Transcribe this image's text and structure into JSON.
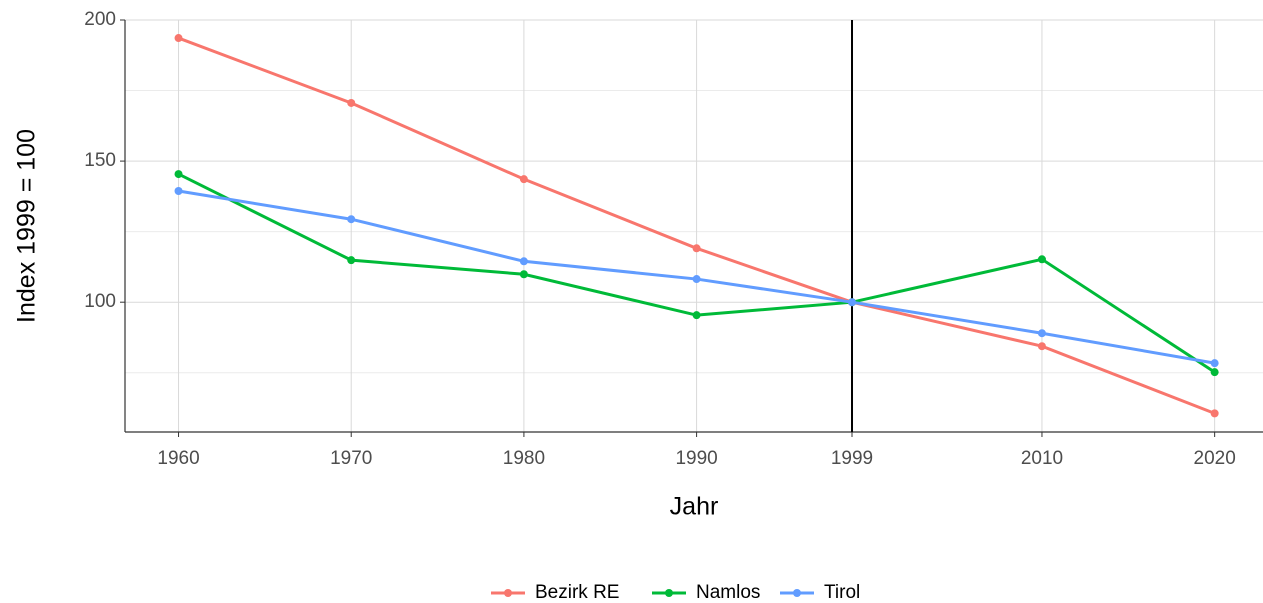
{
  "chart_data": {
    "type": "line",
    "x_label": "Jahr",
    "y_label": "Index 1999 = 100",
    "x": [
      1960,
      1970,
      1980,
      1990,
      1999,
      2010,
      2020
    ],
    "series": [
      {
        "name": "Bezirk RE",
        "color": "#F8766D",
        "values": [
          193.6,
          170.6,
          143.6,
          119.1,
          100,
          84.4,
          60.6
        ]
      },
      {
        "name": "Namlos",
        "color": "#00BA38",
        "values": [
          145.4,
          114.9,
          109.9,
          95.4,
          100,
          115.2,
          75.2
        ]
      },
      {
        "name": "Tirol",
        "color": "#619CFF",
        "values": [
          139.4,
          129.4,
          114.5,
          108.2,
          100,
          89,
          78.4
        ]
      }
    ],
    "xlim": [
      1956.9,
      2022.8
    ],
    "xticks": [
      1960,
      1970,
      1980,
      1990,
      1999,
      2010,
      2020
    ],
    "ylim": [
      54,
      200
    ],
    "yticks": [
      100,
      150,
      200
    ],
    "y_minor_ticks": [
      75,
      125,
      175
    ],
    "vline": 1999,
    "grid": true,
    "legend": "bottom"
  }
}
